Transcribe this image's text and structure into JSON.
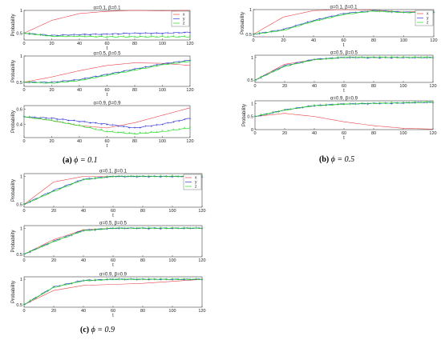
{
  "figure": {
    "panel_labels": [
      {
        "letter": "(a)",
        "phi": "ϕ = 0.1"
      },
      {
        "letter": "(b)",
        "phi": "ϕ = 0.5"
      },
      {
        "letter": "(c)",
        "phi": "ϕ = 0.9"
      }
    ],
    "legend_labels": [
      "x",
      "y",
      "z"
    ],
    "colors": {
      "x": "#e8444a",
      "y": "#3b3bd9",
      "z": "#22dd22",
      "axis": "#444444"
    }
  },
  "chart_data": [
    {
      "type": "line",
      "group": "a",
      "title": "α=0.1, β=0.1",
      "xlabel": "t",
      "ylabel": "Probability",
      "xlim": [
        0,
        120
      ],
      "xticks": [
        0,
        20,
        40,
        60,
        80,
        100,
        120
      ],
      "ylim": [
        0.35,
        1.0
      ],
      "yticks": [
        0.5,
        1
      ],
      "legend": true,
      "x": [
        0,
        20,
        40,
        60,
        80,
        100,
        120
      ],
      "series": [
        {
          "name": "x",
          "values": [
            0.5,
            0.78,
            0.93,
            0.98,
            1.0,
            0.99,
            1.0
          ]
        },
        {
          "name": "y",
          "values": [
            0.5,
            0.45,
            0.47,
            0.48,
            0.5,
            0.5,
            0.52
          ]
        },
        {
          "name": "z",
          "values": [
            0.5,
            0.43,
            0.43,
            0.42,
            0.42,
            0.42,
            0.42
          ]
        }
      ]
    },
    {
      "type": "line",
      "group": "a",
      "title": "α=0.5, β=0.5",
      "xlabel": "t",
      "ylabel": "Probability",
      "xlim": [
        0,
        120
      ],
      "xticks": [
        0,
        20,
        40,
        60,
        80,
        100,
        120
      ],
      "ylim": [
        0.42,
        1.0
      ],
      "yticks": [
        0.5,
        1
      ],
      "legend": false,
      "x": [
        0,
        20,
        40,
        60,
        80,
        100,
        120
      ],
      "series": [
        {
          "name": "x",
          "values": [
            0.5,
            0.6,
            0.72,
            0.82,
            0.87,
            0.86,
            0.82
          ]
        },
        {
          "name": "y",
          "values": [
            0.5,
            0.5,
            0.55,
            0.65,
            0.75,
            0.85,
            0.92
          ]
        },
        {
          "name": "z",
          "values": [
            0.5,
            0.48,
            0.53,
            0.63,
            0.73,
            0.83,
            0.9
          ]
        }
      ]
    },
    {
      "type": "line",
      "group": "a",
      "title": "α=0.9, β=0.9",
      "xlabel": "t",
      "ylabel": "Probability",
      "xlim": [
        0,
        120
      ],
      "xticks": [
        0,
        20,
        40,
        60,
        80,
        100,
        120
      ],
      "ylim": [
        0.22,
        0.65
      ],
      "yticks": [
        0.4,
        0.6
      ],
      "legend": false,
      "x": [
        0,
        20,
        40,
        60,
        80,
        100,
        120
      ],
      "series": [
        {
          "name": "x",
          "values": [
            0.5,
            0.45,
            0.38,
            0.35,
            0.42,
            0.52,
            0.62
          ]
        },
        {
          "name": "y",
          "values": [
            0.5,
            0.48,
            0.44,
            0.4,
            0.35,
            0.4,
            0.48
          ]
        },
        {
          "name": "z",
          "values": [
            0.5,
            0.45,
            0.38,
            0.3,
            0.27,
            0.3,
            0.35
          ]
        }
      ]
    },
    {
      "type": "line",
      "group": "b",
      "title": "α=0.1, β=0.1",
      "xlabel": "t",
      "ylabel": "Probability",
      "xlim": [
        0,
        120
      ],
      "xticks": [
        0,
        20,
        40,
        60,
        80,
        100,
        120
      ],
      "ylim": [
        0.45,
        1.0
      ],
      "yticks": [
        0.5,
        1
      ],
      "legend": true,
      "x": [
        0,
        20,
        40,
        60,
        80,
        100,
        120
      ],
      "series": [
        {
          "name": "x",
          "values": [
            0.5,
            0.85,
            0.98,
            1.0,
            0.99,
            0.95,
            0.97
          ]
        },
        {
          "name": "y",
          "values": [
            0.5,
            0.6,
            0.78,
            0.92,
            0.98,
            0.95,
            0.95
          ]
        },
        {
          "name": "z",
          "values": [
            0.5,
            0.58,
            0.76,
            0.9,
            0.97,
            0.94,
            0.94
          ]
        }
      ]
    },
    {
      "type": "line",
      "group": "b",
      "title": "α=0.5, β=0.5",
      "xlabel": "t",
      "ylabel": "",
      "xlim": [
        0,
        120
      ],
      "xticks": [
        0,
        20,
        40,
        60,
        80,
        100,
        120
      ],
      "ylim": [
        0.45,
        1.05
      ],
      "yticks": [
        0.5,
        1
      ],
      "legend": false,
      "x": [
        0,
        20,
        40,
        60,
        80,
        100,
        120
      ],
      "series": [
        {
          "name": "x",
          "values": [
            0.5,
            0.85,
            0.95,
            1.0,
            1.0,
            1.0,
            1.0
          ]
        },
        {
          "name": "y",
          "values": [
            0.5,
            0.82,
            0.96,
            1.0,
            1.0,
            1.0,
            1.0
          ]
        },
        {
          "name": "z",
          "values": [
            0.5,
            0.8,
            0.95,
            1.0,
            1.0,
            1.0,
            1.0
          ]
        }
      ]
    },
    {
      "type": "line",
      "group": "b",
      "title": "α=0.9, β=0.9",
      "xlabel": "t",
      "ylabel": "Probability",
      "xlim": [
        0,
        120
      ],
      "xticks": [
        0,
        20,
        40,
        60,
        80,
        100,
        120
      ],
      "ylim": [
        0.0,
        1.1
      ],
      "yticks": [
        0,
        0.5,
        1
      ],
      "legend": false,
      "x": [
        0,
        20,
        40,
        60,
        80,
        100,
        120
      ],
      "series": [
        {
          "name": "x",
          "values": [
            0.5,
            0.62,
            0.5,
            0.3,
            0.15,
            0.05,
            0.02
          ]
        },
        {
          "name": "y",
          "values": [
            0.5,
            0.75,
            0.92,
            0.98,
            1.0,
            1.02,
            1.05
          ]
        },
        {
          "name": "z",
          "values": [
            0.5,
            0.74,
            0.91,
            0.97,
            1.0,
            1.02,
            1.05
          ]
        }
      ]
    },
    {
      "type": "line",
      "group": "c",
      "title": "α=0.1, β=0.1",
      "xlabel": "t",
      "ylabel": "Probability",
      "xlim": [
        0,
        120
      ],
      "xticks": [
        0,
        20,
        40,
        60,
        80,
        100,
        120
      ],
      "ylim": [
        0.45,
        1.05
      ],
      "yticks": [
        0.5,
        1
      ],
      "legend": true,
      "x": [
        0,
        20,
        40,
        60,
        80,
        100,
        120
      ],
      "series": [
        {
          "name": "x",
          "values": [
            0.5,
            0.9,
            1.0,
            1.0,
            1.0,
            1.0,
            1.0
          ]
        },
        {
          "name": "y",
          "values": [
            0.5,
            0.75,
            0.95,
            1.0,
            1.0,
            1.0,
            1.0
          ]
        },
        {
          "name": "z",
          "values": [
            0.5,
            0.73,
            0.94,
            1.0,
            1.0,
            1.0,
            1.0
          ]
        }
      ]
    },
    {
      "type": "line",
      "group": "c",
      "title": "α=0.5, β=0.5",
      "xlabel": "t",
      "ylabel": "Probability",
      "xlim": [
        0,
        120
      ],
      "xticks": [
        0,
        20,
        40,
        60,
        80,
        100,
        120
      ],
      "ylim": [
        0.45,
        1.05
      ],
      "yticks": [
        0.5,
        1
      ],
      "legend": false,
      "x": [
        0,
        20,
        40,
        60,
        80,
        100,
        120
      ],
      "series": [
        {
          "name": "x",
          "values": [
            0.5,
            0.78,
            0.97,
            1.0,
            1.0,
            1.0,
            1.0
          ]
        },
        {
          "name": "y",
          "values": [
            0.5,
            0.75,
            0.96,
            1.0,
            1.0,
            1.0,
            1.0
          ]
        },
        {
          "name": "z",
          "values": [
            0.5,
            0.74,
            0.95,
            1.0,
            1.0,
            1.0,
            1.0
          ]
        }
      ]
    },
    {
      "type": "line",
      "group": "c",
      "title": "α=0.9, β=0.9",
      "xlabel": "t",
      "ylabel": "Probability",
      "xlim": [
        0,
        120
      ],
      "xticks": [
        0,
        20,
        40,
        60,
        80,
        100,
        120
      ],
      "ylim": [
        0.45,
        1.05
      ],
      "yticks": [
        0.5,
        1
      ],
      "legend": false,
      "x": [
        0,
        20,
        40,
        60,
        80,
        100,
        120
      ],
      "series": [
        {
          "name": "x",
          "values": [
            0.5,
            0.78,
            0.88,
            0.9,
            0.92,
            0.96,
            1.0
          ]
        },
        {
          "name": "y",
          "values": [
            0.5,
            0.85,
            0.98,
            1.0,
            1.0,
            1.0,
            1.0
          ]
        },
        {
          "name": "z",
          "values": [
            0.5,
            0.84,
            0.97,
            1.0,
            1.0,
            1.0,
            1.0
          ]
        }
      ]
    }
  ]
}
